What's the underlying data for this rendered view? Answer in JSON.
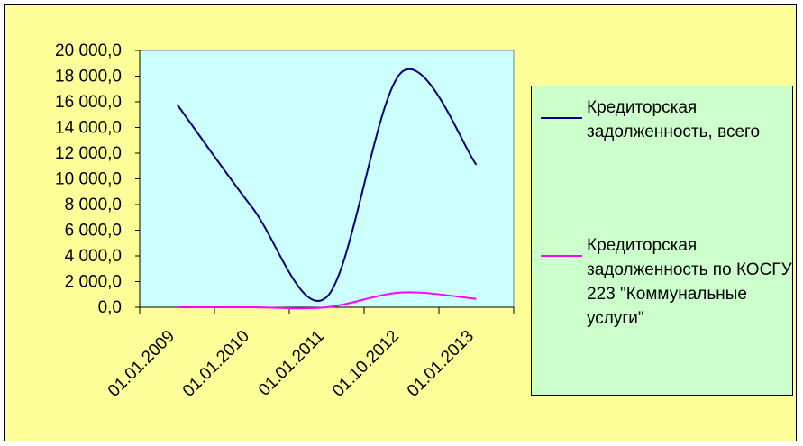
{
  "chart_data": {
    "type": "line",
    "categories": [
      "01.01.2009",
      "01.01.2010",
      "01.01.2011",
      "01.10.2012",
      "01.01.2013"
    ],
    "series": [
      {
        "name": "Кредиторская задолженность, всего",
        "color": "#000080",
        "values": [
          15800,
          7800,
          800,
          18300,
          11100
        ]
      },
      {
        "name": "Кредиторская задолженность по КОСГУ 223 \"Коммунальные услуги\"",
        "color": "#ff00ff",
        "values": [
          0,
          0,
          0,
          1150,
          650
        ]
      }
    ],
    "ylim": [
      0,
      20000
    ],
    "yticks": [
      "0,0",
      "2 000,0",
      "4 000,0",
      "6 000,0",
      "8 000,0",
      "10 000,0",
      "12 000,0",
      "14 000,0",
      "16 000,0",
      "18 000,0",
      "20 000,0"
    ],
    "grid": false,
    "smooth": true,
    "legend_position": "right",
    "colors": {
      "chart_area": "#ffff99",
      "plot_area": "#ccffff",
      "legend_background": "#ccffcc"
    }
  }
}
